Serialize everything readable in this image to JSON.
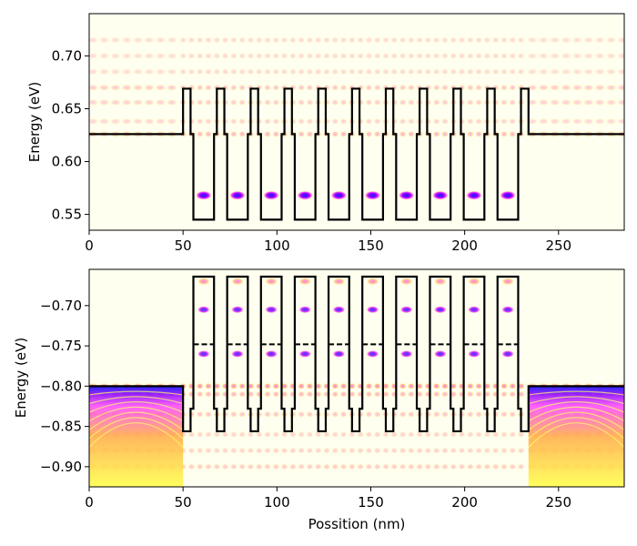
{
  "figure": {
    "background": "#ffffff",
    "colormap": [
      "#fffff0",
      "#ffff00",
      "#ff00ff",
      "#0000ff"
    ]
  },
  "chart_data": [
    {
      "type": "heatmap",
      "title": "",
      "xlabel": "",
      "ylabel": "Energy (eV)",
      "xlim": [
        0,
        285
      ],
      "ylim": [
        0.535,
        0.74
      ],
      "xticks": [
        0,
        50,
        100,
        150,
        200,
        250
      ],
      "xtick_labels": [
        "0",
        "50",
        "100",
        "150",
        "200",
        "250"
      ],
      "yticks": [
        0.55,
        0.6,
        0.65,
        0.7
      ],
      "ytick_labels": [
        "0.55",
        "0.60",
        "0.65",
        "0.70"
      ],
      "grid": false,
      "potential_profile": {
        "left_level": 0.626,
        "barrier_top": 0.669,
        "well_step": 0.626,
        "well_bottom": 0.545,
        "right_level": 0.626,
        "barrier_start_x": [
          50,
          68,
          86,
          104,
          122,
          140,
          158,
          176,
          194,
          212,
          230
        ],
        "barrier_width": 4,
        "well_width": 14
      },
      "bound_states": {
        "ground_energy": 0.568,
        "well_centers_x": [
          61,
          79,
          97,
          115,
          133,
          151,
          169,
          187,
          205,
          223
        ]
      },
      "density_bands": [
        {
          "energy": 0.626,
          "strength": 0.6
        },
        {
          "energy": 0.638,
          "strength": 0.4
        },
        {
          "energy": 0.656,
          "strength": 0.45
        },
        {
          "energy": 0.67,
          "strength": 0.5
        },
        {
          "energy": 0.685,
          "strength": 0.35
        },
        {
          "energy": 0.7,
          "strength": 0.35
        },
        {
          "energy": 0.715,
          "strength": 0.35
        }
      ]
    },
    {
      "type": "heatmap",
      "title": "",
      "xlabel": "Possition (nm)",
      "ylabel": "Energy (eV)",
      "xlim": [
        0,
        285
      ],
      "ylim": [
        -0.925,
        -0.655
      ],
      "xticks": [
        0,
        50,
        100,
        150,
        200,
        250
      ],
      "xtick_labels": [
        "0",
        "50",
        "100",
        "150",
        "200",
        "250"
      ],
      "yticks": [
        -0.9,
        -0.85,
        -0.8,
        -0.75,
        -0.7
      ],
      "ytick_labels": [
        "−0.90",
        "−0.85",
        "−0.80",
        "−0.75",
        "−0.70"
      ],
      "grid": false,
      "potential_profile": {
        "left_level": -0.8,
        "barrier_top": -0.856,
        "well_step": -0.828,
        "well_step_dashed": -0.748,
        "well_top": -0.664,
        "right_level": -0.8,
        "barrier_start_x": [
          50,
          68,
          86,
          104,
          122,
          140,
          158,
          176,
          194,
          212,
          230
        ],
        "barrier_width": 4,
        "well_width": 14
      },
      "bound_states": {
        "state_energies": [
          -0.67,
          -0.705,
          -0.76
        ],
        "well_centers_x": [
          61,
          79,
          97,
          115,
          133,
          151,
          169,
          187,
          205,
          223
        ]
      },
      "density_bands": [
        {
          "energy": -0.8,
          "strength": 0.9
        },
        {
          "energy": -0.81,
          "strength": 0.6
        },
        {
          "energy": -0.835,
          "strength": 0.5
        },
        {
          "energy": -0.86,
          "strength": 0.4
        },
        {
          "energy": -0.88,
          "strength": 0.4
        },
        {
          "energy": -0.9,
          "strength": 0.45
        }
      ]
    }
  ]
}
